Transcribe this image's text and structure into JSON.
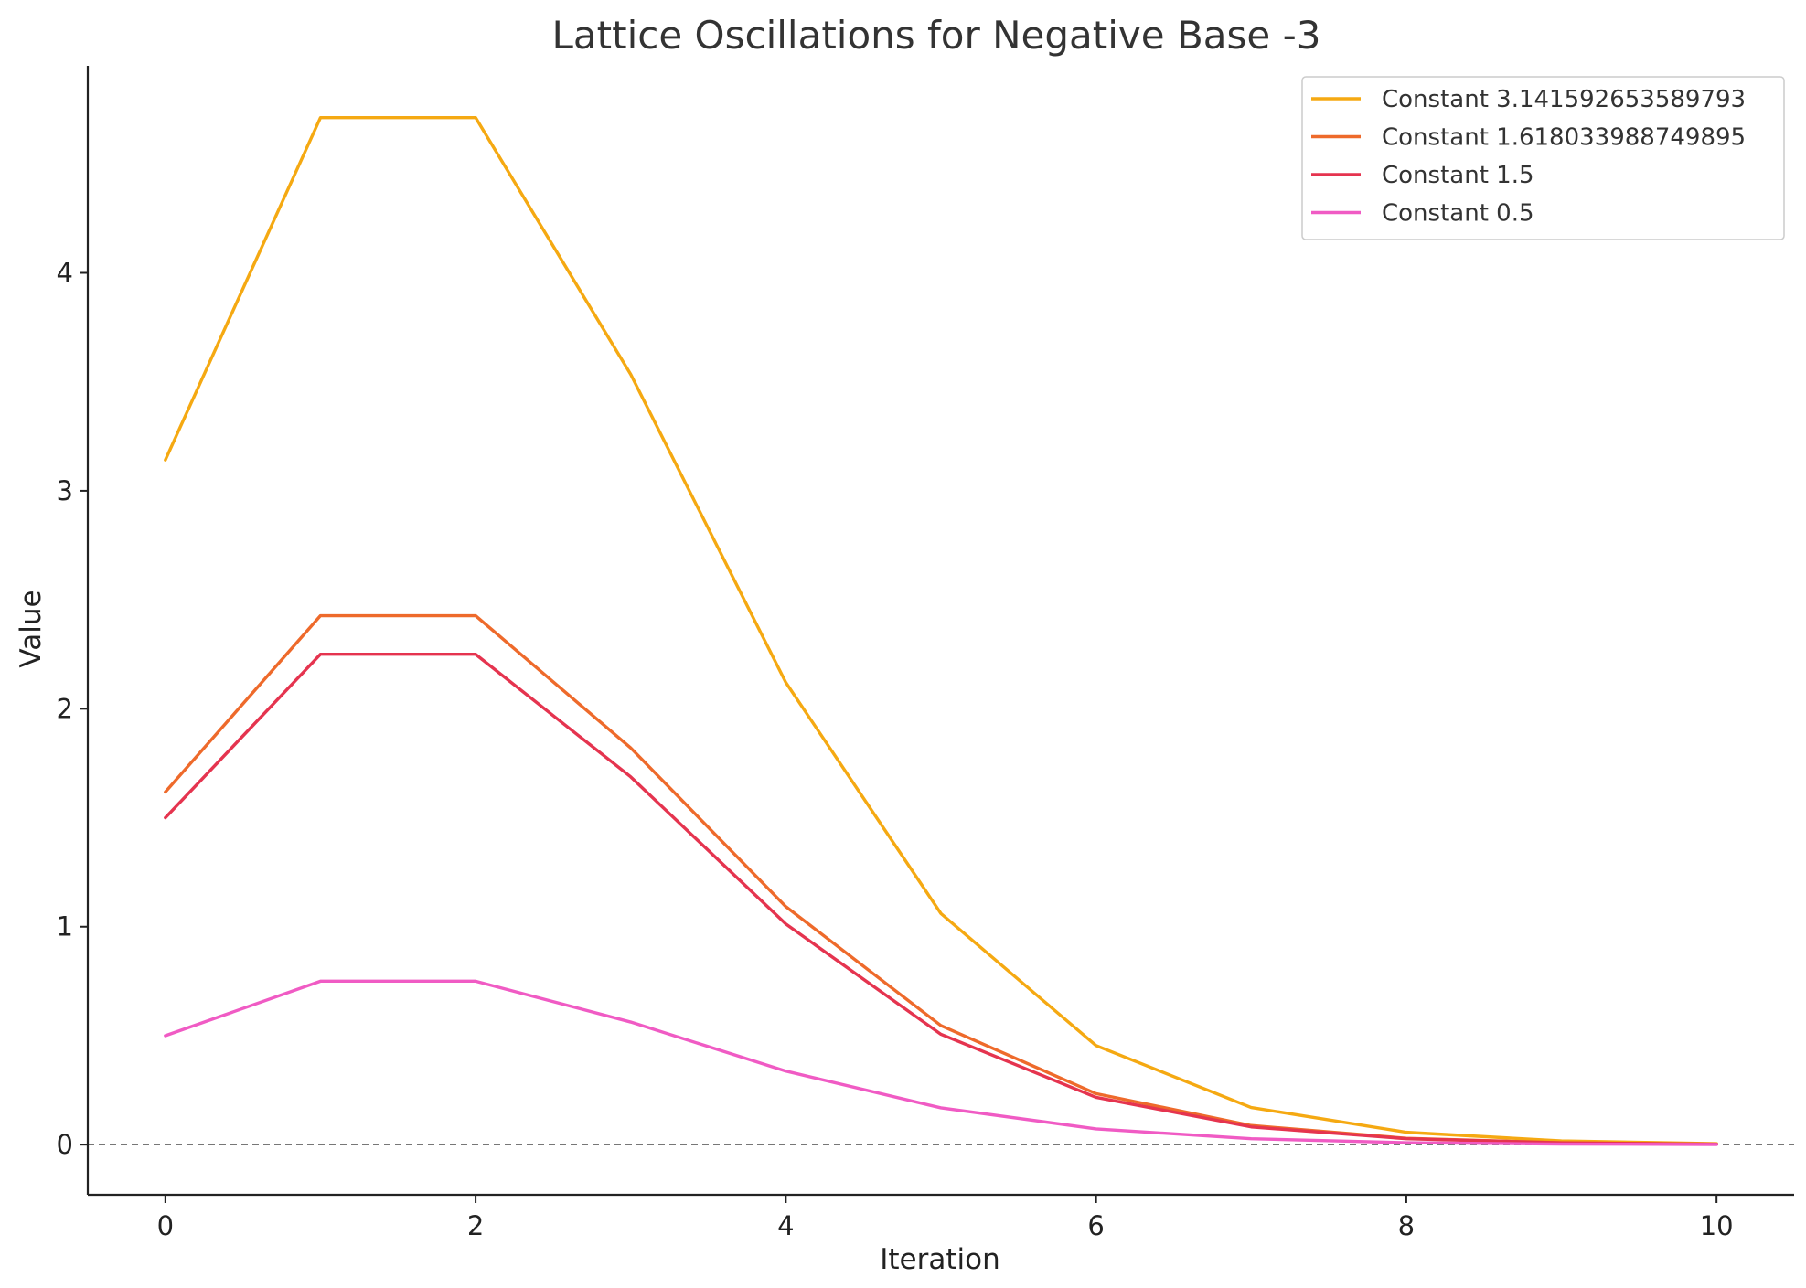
{
  "chart_data": {
    "type": "line",
    "title": "Lattice Oscillations for Negative Base -3",
    "xlabel": "Iteration",
    "ylabel": "Value",
    "xlim": [
      -0.5,
      10.5
    ],
    "ylim": [
      -0.23,
      4.95
    ],
    "x": [
      0,
      1,
      2,
      3,
      4,
      5,
      6,
      7,
      8,
      9,
      10
    ],
    "xticks": [
      0,
      2,
      4,
      6,
      8,
      10
    ],
    "yticks": [
      0,
      1,
      2,
      3,
      4
    ],
    "grid": false,
    "legend_position": "top-right",
    "reference_line": {
      "y": 0,
      "style": "dashed",
      "color": "#777777"
    },
    "series": [
      {
        "name": "Constant 3.141592653589793",
        "color": "#F5A912",
        "values": [
          3.1416,
          4.7124,
          4.7124,
          3.5343,
          2.1206,
          1.0603,
          0.4544,
          0.1704,
          0.0568,
          0.017,
          0.0046
        ]
      },
      {
        "name": "Constant 1.618033988749895",
        "color": "#EE6A2B",
        "values": [
          1.618,
          2.427,
          2.427,
          1.8203,
          1.0922,
          0.5461,
          0.234,
          0.0878,
          0.0293,
          0.0088,
          0.0024
        ]
      },
      {
        "name": "Constant 1.5",
        "color": "#E5344F",
        "values": [
          1.5,
          2.25,
          2.25,
          1.6875,
          1.0125,
          0.5063,
          0.217,
          0.0814,
          0.0271,
          0.0081,
          0.0022
        ]
      },
      {
        "name": "Constant 0.5",
        "color": "#F05BC4",
        "values": [
          0.5,
          0.75,
          0.75,
          0.5625,
          0.3375,
          0.1688,
          0.0723,
          0.0271,
          0.009,
          0.0027,
          0.0007
        ]
      }
    ]
  }
}
